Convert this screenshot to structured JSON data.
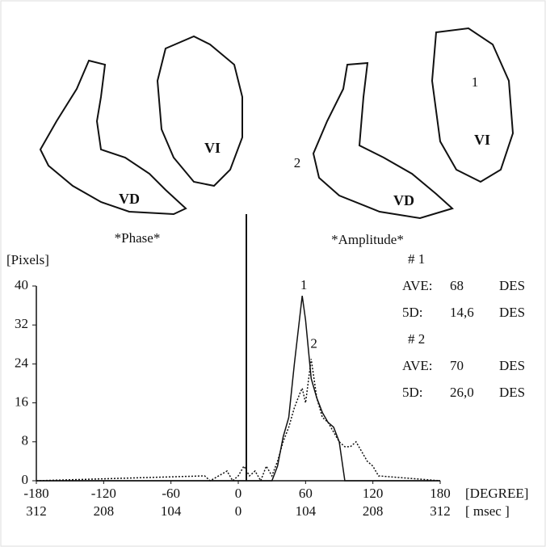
{
  "chart_data": {
    "type": "line",
    "y_label": "[Pixels]",
    "x_unit": "[DEGREE]",
    "x2_unit": "[ msec ]",
    "xlim": [
      -180,
      180
    ],
    "ylim": [
      0,
      40
    ],
    "xticks": [
      -180,
      -120,
      -60,
      0,
      60,
      120,
      180
    ],
    "x2ticks": [
      {
        "value": -180,
        "label": "312"
      },
      {
        "value": -120,
        "label": "208"
      },
      {
        "value": -60,
        "label": "104"
      },
      {
        "value": 0,
        "label": "0"
      },
      {
        "value": 60,
        "label": "104"
      },
      {
        "value": 120,
        "label": "208"
      },
      {
        "value": 180,
        "label": "312"
      }
    ],
    "yticks": [
      0,
      8,
      16,
      24,
      32,
      40
    ],
    "x": [
      -180,
      -30,
      -25,
      -10,
      -5,
      0,
      5,
      10,
      15,
      20,
      25,
      30,
      35,
      40,
      45,
      50,
      55,
      57,
      60,
      65,
      70,
      75,
      80,
      85,
      90,
      95,
      100,
      105,
      110,
      115,
      120,
      125,
      180
    ],
    "series": [
      {
        "color": "#111111",
        "dash": "none",
        "values": [
          0,
          0,
          0,
          0,
          0,
          0,
          0,
          0,
          0,
          0,
          0,
          0,
          3,
          9,
          13,
          24,
          34,
          38,
          33,
          21,
          17,
          14,
          12,
          11,
          8,
          0,
          0,
          0,
          0,
          0,
          0,
          0,
          0
        ]
      },
      {
        "color": "#111111",
        "dash": "2 2",
        "values": [
          0,
          1,
          0,
          2,
          0,
          1,
          3,
          1,
          2,
          0,
          3,
          1,
          4,
          8,
          11,
          15,
          18,
          19,
          16,
          25,
          17,
          13,
          12,
          10,
          8,
          7,
          7,
          8,
          6,
          4,
          3,
          1,
          0
        ]
      }
    ],
    "peak_labels": [
      {
        "text": "1",
        "x": 57,
        "y": 38
      },
      {
        "text": "2",
        "x": 66,
        "y": 26
      }
    ],
    "stats": [
      [
        "# 1"
      ],
      [
        "AVE:",
        "68",
        "DES"
      ],
      [
        "5D:",
        "14,6",
        "DES"
      ],
      [
        "# 2"
      ],
      [
        "AVE:",
        "70",
        "DES"
      ],
      [
        "5D:",
        "26,0",
        "DES"
      ]
    ],
    "images": [
      {
        "title": "*Phase*",
        "labels": [
          "VD",
          "VI"
        ]
      },
      {
        "title": "*Amplitude*",
        "labels": [
          "VD",
          "VI",
          "1",
          "2"
        ]
      }
    ]
  }
}
